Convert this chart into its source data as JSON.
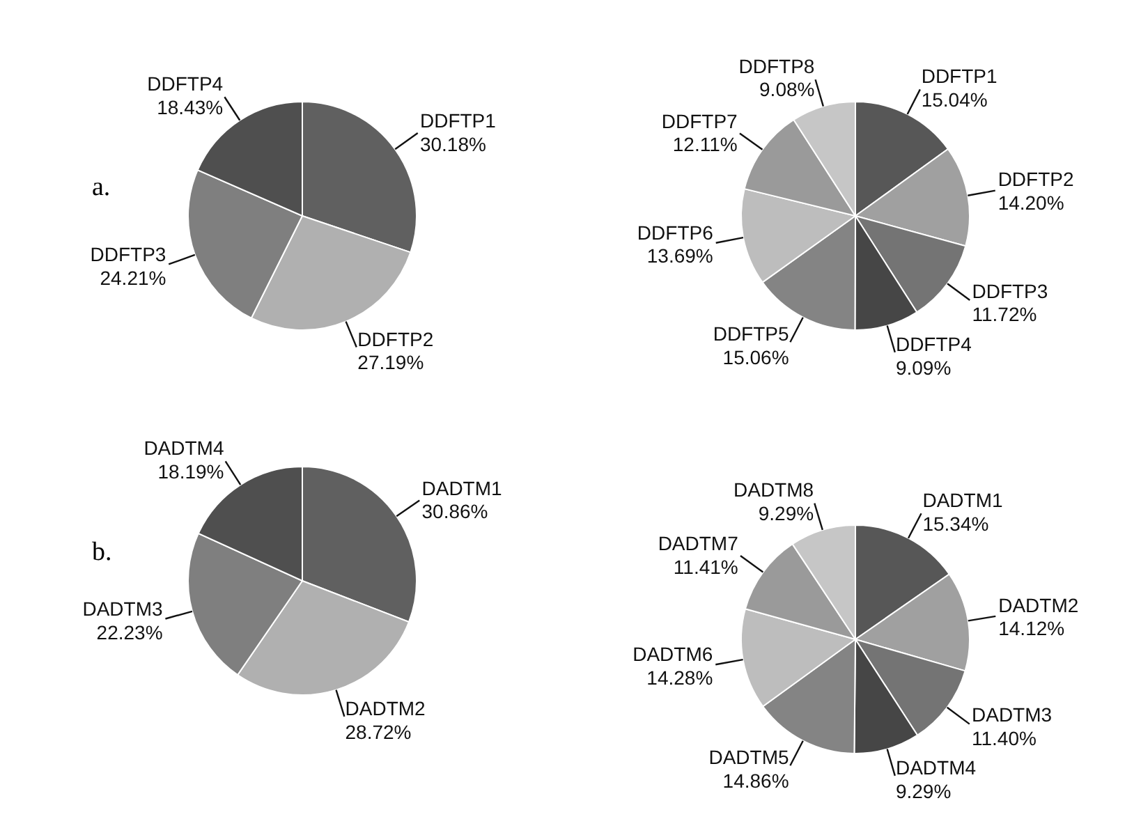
{
  "chart_data": [
    {
      "type": "pie",
      "title": "a.",
      "categories": [
        "DDFTP1",
        "DDFTP2",
        "DDFTP3",
        "DDFTP4"
      ],
      "values": [
        30.18,
        27.19,
        24.21,
        18.43
      ],
      "value_labels": [
        "30.18%",
        "27.19%",
        "24.21%",
        "18.43%"
      ],
      "colors": [
        "#606060",
        "#b0b0b0",
        "#7f7f7f",
        "#4f4f4f"
      ]
    },
    {
      "type": "pie",
      "categories": [
        "DDFTP1",
        "DDFTP2",
        "DDFTP3",
        "DDFTP4",
        "DDFTP5",
        "DDFTP6",
        "DDFTP7",
        "DDFTP8"
      ],
      "values": [
        15.04,
        14.2,
        11.72,
        9.09,
        15.06,
        13.69,
        12.11,
        9.08
      ],
      "value_labels": [
        "15.04%",
        "14.20%",
        "11.72%",
        "9.09%",
        "15.06%",
        "13.69%",
        "12.11%",
        "9.08%"
      ],
      "colors": [
        "#575757",
        "#a0a0a0",
        "#747474",
        "#464646",
        "#848484",
        "#bdbdbd",
        "#9a9a9a",
        "#c6c6c6"
      ]
    },
    {
      "type": "pie",
      "title": "b.",
      "categories": [
        "DADTM1",
        "DADTM2",
        "DADTM3",
        "DADTM4"
      ],
      "values": [
        30.86,
        28.72,
        22.23,
        18.19
      ],
      "value_labels": [
        "30.86%",
        "28.72%",
        "22.23%",
        "18.19%"
      ],
      "colors": [
        "#606060",
        "#b0b0b0",
        "#7f7f7f",
        "#4f4f4f"
      ]
    },
    {
      "type": "pie",
      "categories": [
        "DADTM1",
        "DADTM2",
        "DADTM3",
        "DADTM4",
        "DADTM5",
        "DADTM6",
        "DADTM7",
        "DADTM8"
      ],
      "values": [
        15.34,
        14.12,
        11.4,
        9.29,
        14.86,
        14.28,
        11.41,
        9.29
      ],
      "value_labels": [
        "15.34%",
        "14.12%",
        "11.40%",
        "9.29%",
        "14.86%",
        "14.28%",
        "11.41%",
        "9.29%"
      ],
      "colors": [
        "#575757",
        "#a0a0a0",
        "#747474",
        "#464646",
        "#848484",
        "#bdbdbd",
        "#9a9a9a",
        "#c6c6c6"
      ]
    }
  ]
}
